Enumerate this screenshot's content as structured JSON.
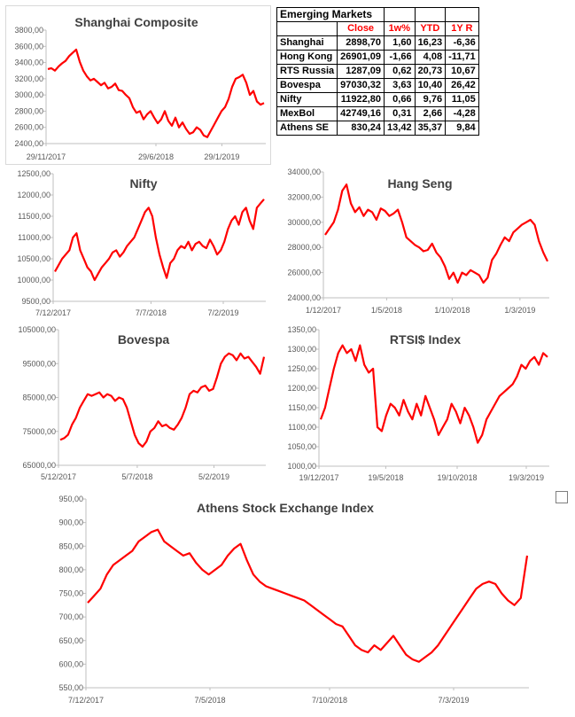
{
  "table": {
    "title": "Emerging Markets",
    "headers": [
      "",
      "Close",
      "1w%",
      "YTD",
      "1Y R"
    ],
    "rows": [
      [
        "Shanghai",
        "2898,70",
        "1,60",
        "16,23",
        "-6,36"
      ],
      [
        "Hong Kong",
        "26901,09",
        "-1,66",
        "4,08",
        "-11,71"
      ],
      [
        "RTS Russia",
        "1287,09",
        "0,62",
        "20,73",
        "10,67"
      ],
      [
        "Bovespa",
        "97030,32",
        "3,63",
        "10,40",
        "26,42"
      ],
      [
        "Nifty",
        "11922,80",
        "0,66",
        "9,76",
        "11,05"
      ],
      [
        "MexBol",
        "42749,16",
        "0,31",
        "2,66",
        "-4,28"
      ],
      [
        "Athens SE",
        "830,24",
        "13,42",
        "35,37",
        "9,84"
      ]
    ]
  },
  "colors": {
    "series": "#ff0000",
    "axis": "#bfbfbf",
    "header_text": "#ff0000"
  },
  "chart_data": [
    {
      "id": "shanghai",
      "type": "line",
      "title": "Shanghai Composite",
      "y_ticks": [
        "3800,00",
        "3600,00",
        "3400,00",
        "3200,00",
        "3000,00",
        "2800,00",
        "2600,00",
        "2400,00"
      ],
      "ylim": [
        2400,
        3800
      ],
      "x_labels": [
        "29/11/2017",
        "29/6/2018",
        "29/1/2019"
      ],
      "x_label_frac": [
        0.0,
        0.5,
        0.8
      ],
      "values": [
        3320,
        3330,
        3300,
        3350,
        3390,
        3420,
        3480,
        3520,
        3560,
        3410,
        3300,
        3230,
        3180,
        3200,
        3160,
        3120,
        3150,
        3080,
        3100,
        3140,
        3060,
        3050,
        3000,
        2960,
        2850,
        2780,
        2800,
        2700,
        2760,
        2800,
        2720,
        2650,
        2700,
        2800,
        2680,
        2620,
        2720,
        2600,
        2660,
        2580,
        2520,
        2540,
        2600,
        2570,
        2500,
        2480,
        2560,
        2640,
        2720,
        2800,
        2850,
        2950,
        3100,
        3200,
        3220,
        3250,
        3150,
        3000,
        3050,
        2920,
        2880,
        2900
      ]
    },
    {
      "id": "nifty",
      "type": "line",
      "title": "Nifty",
      "y_ticks": [
        "12500,00",
        "12000,00",
        "11500,00",
        "11000,00",
        "10500,00",
        "10000,00",
        "9500,00"
      ],
      "ylim": [
        9500,
        12500
      ],
      "x_labels": [
        "7/12/2017",
        "7/7/2018",
        "7/2/2019"
      ],
      "x_label_frac": [
        0.0,
        0.46,
        0.8
      ],
      "values": [
        10200,
        10350,
        10500,
        10600,
        10700,
        11000,
        11100,
        10700,
        10500,
        10300,
        10200,
        10000,
        10150,
        10300,
        10400,
        10500,
        10650,
        10700,
        10550,
        10650,
        10800,
        10900,
        11000,
        11200,
        11400,
        11600,
        11700,
        11500,
        11000,
        10600,
        10300,
        10050,
        10400,
        10500,
        10700,
        10800,
        10750,
        10900,
        10700,
        10850,
        10900,
        10800,
        10750,
        10950,
        10800,
        10600,
        10700,
        10900,
        11200,
        11400,
        11500,
        11300,
        11600,
        11700,
        11400,
        11200,
        11700,
        11800,
        11900
      ]
    },
    {
      "id": "hangseng",
      "type": "line",
      "title": "Hang Seng",
      "y_ticks": [
        "34000,00",
        "32000,00",
        "30000,00",
        "28000,00",
        "26000,00",
        "24000,00"
      ],
      "ylim": [
        24000,
        34000
      ],
      "x_labels": [
        "1/12/2017",
        "1/5/2018",
        "1/10/2018",
        "1/3/2019"
      ],
      "x_label_frac": [
        0.0,
        0.28,
        0.57,
        0.87
      ],
      "values": [
        29000,
        29500,
        30000,
        31000,
        32500,
        33000,
        31500,
        30800,
        31200,
        30500,
        31000,
        30800,
        30200,
        31100,
        30900,
        30500,
        30700,
        31000,
        30000,
        28800,
        28500,
        28200,
        28000,
        27700,
        27800,
        28300,
        27600,
        27200,
        26500,
        25500,
        26000,
        25200,
        26000,
        25800,
        26200,
        26000,
        25800,
        25200,
        25600,
        27000,
        27500,
        28200,
        28800,
        28500,
        29200,
        29500,
        29800,
        30000,
        30200,
        29800,
        28500,
        27600,
        26900
      ]
    },
    {
      "id": "bovespa",
      "type": "line",
      "title": "Bovespa",
      "y_ticks": [
        "105000,00",
        "95000,00",
        "85000,00",
        "75000,00",
        "65000,00"
      ],
      "ylim": [
        65000,
        105000
      ],
      "x_labels": [
        "5/12/2017",
        "5/7/2018",
        "5/2/2019"
      ],
      "x_label_frac": [
        0.0,
        0.38,
        0.75
      ],
      "values": [
        72500,
        73000,
        74000,
        77000,
        79000,
        82000,
        84000,
        86000,
        85500,
        86000,
        86500,
        85000,
        86000,
        85500,
        84000,
        85000,
        84500,
        82000,
        78000,
        74000,
        71500,
        70500,
        72000,
        75000,
        76000,
        78000,
        76500,
        77000,
        76000,
        75500,
        77000,
        79000,
        82000,
        86000,
        87000,
        86500,
        88000,
        88500,
        87000,
        87500,
        91000,
        95000,
        97000,
        98000,
        97500,
        96000,
        98000,
        96500,
        97000,
        95500,
        94000,
        92000,
        97000
      ]
    },
    {
      "id": "rts",
      "type": "line",
      "title": "RTSI$ Index",
      "y_ticks": [
        "1350,00",
        "1300,00",
        "1250,00",
        "1200,00",
        "1150,00",
        "1100,00",
        "1050,00",
        "1000,00"
      ],
      "ylim": [
        1000,
        1350
      ],
      "x_labels": [
        "19/12/2017",
        "19/5/2018",
        "19/10/2018",
        "19/3/2019"
      ],
      "x_label_frac": [
        0.0,
        0.29,
        0.6,
        0.9
      ],
      "values": [
        1120,
        1150,
        1200,
        1250,
        1290,
        1310,
        1290,
        1300,
        1270,
        1310,
        1260,
        1240,
        1250,
        1100,
        1090,
        1130,
        1160,
        1150,
        1130,
        1170,
        1140,
        1120,
        1160,
        1130,
        1180,
        1150,
        1120,
        1080,
        1100,
        1120,
        1160,
        1140,
        1110,
        1150,
        1130,
        1100,
        1060,
        1080,
        1120,
        1140,
        1160,
        1180,
        1190,
        1200,
        1210,
        1230,
        1260,
        1250,
        1270,
        1280,
        1260,
        1290,
        1280
      ]
    },
    {
      "id": "athens",
      "type": "line",
      "title": "Athens Stock Exchange Index",
      "y_ticks": [
        "950,00",
        "900,00",
        "850,00",
        "800,00",
        "750,00",
        "700,00",
        "650,00",
        "600,00",
        "550,00"
      ],
      "ylim": [
        550,
        950
      ],
      "x_labels": [
        "7/12/2017",
        "7/5/2018",
        "7/10/2018",
        "7/3/2019"
      ],
      "x_label_frac": [
        0.0,
        0.28,
        0.55,
        0.83
      ],
      "values": [
        730,
        745,
        760,
        790,
        810,
        820,
        830,
        840,
        860,
        870,
        880,
        885,
        860,
        850,
        840,
        830,
        835,
        815,
        800,
        790,
        800,
        810,
        830,
        845,
        855,
        820,
        790,
        775,
        765,
        760,
        755,
        750,
        745,
        740,
        735,
        725,
        715,
        705,
        695,
        685,
        680,
        660,
        640,
        630,
        625,
        640,
        630,
        645,
        660,
        640,
        620,
        610,
        605,
        615,
        625,
        640,
        660,
        680,
        700,
        720,
        740,
        760,
        770,
        775,
        770,
        750,
        735,
        725,
        740,
        830
      ]
    }
  ]
}
